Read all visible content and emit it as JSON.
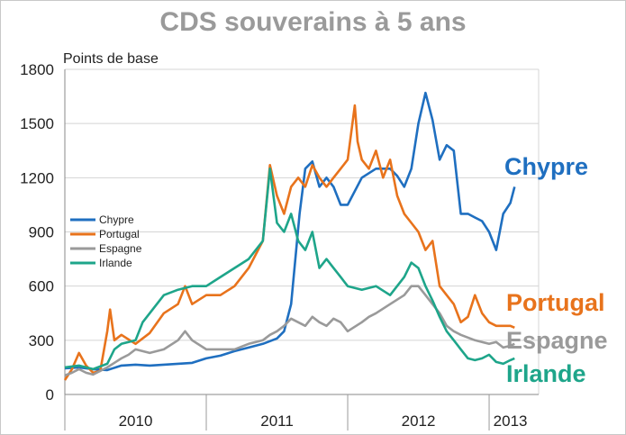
{
  "chart_data": {
    "type": "line",
    "title": "CDS souverains à 5 ans",
    "ylabel": "Points de base",
    "ylim": [
      0,
      1800
    ],
    "yticks": [
      0,
      300,
      600,
      900,
      1200,
      1500,
      1800
    ],
    "xlim": [
      2010.0,
      2013.35
    ],
    "x_tick_labels": [
      {
        "label": "2010",
        "x": 2010.5
      },
      {
        "label": "2011",
        "x": 2011.5
      },
      {
        "label": "2012",
        "x": 2012.5
      },
      {
        "label": "2013",
        "x": 2013.15
      }
    ],
    "x_year_boundaries": [
      2010,
      2011,
      2012,
      2013
    ],
    "grid": true,
    "legend": "left, middle",
    "series": [
      {
        "name": "Chypre",
        "color": "#1f6fc0",
        "end_label": "Chypre",
        "points": [
          [
            2010.0,
            145
          ],
          [
            2010.1,
            150
          ],
          [
            2010.2,
            140
          ],
          [
            2010.3,
            135
          ],
          [
            2010.4,
            160
          ],
          [
            2010.5,
            165
          ],
          [
            2010.6,
            160
          ],
          [
            2010.7,
            165
          ],
          [
            2010.8,
            170
          ],
          [
            2010.9,
            175
          ],
          [
            2011.0,
            200
          ],
          [
            2011.1,
            215
          ],
          [
            2011.2,
            240
          ],
          [
            2011.3,
            260
          ],
          [
            2011.4,
            280
          ],
          [
            2011.5,
            310
          ],
          [
            2011.55,
            350
          ],
          [
            2011.6,
            500
          ],
          [
            2011.63,
            750
          ],
          [
            2011.66,
            1000
          ],
          [
            2011.7,
            1250
          ],
          [
            2011.75,
            1290
          ],
          [
            2011.8,
            1150
          ],
          [
            2011.85,
            1200
          ],
          [
            2011.9,
            1150
          ],
          [
            2011.95,
            1050
          ],
          [
            2012.0,
            1050
          ],
          [
            2012.1,
            1200
          ],
          [
            2012.2,
            1250
          ],
          [
            2012.3,
            1250
          ],
          [
            2012.35,
            1210
          ],
          [
            2012.4,
            1150
          ],
          [
            2012.45,
            1250
          ],
          [
            2012.5,
            1500
          ],
          [
            2012.55,
            1670
          ],
          [
            2012.6,
            1520
          ],
          [
            2012.65,
            1300
          ],
          [
            2012.7,
            1380
          ],
          [
            2012.75,
            1350
          ],
          [
            2012.8,
            1000
          ],
          [
            2012.85,
            1000
          ],
          [
            2012.9,
            980
          ],
          [
            2012.95,
            960
          ],
          [
            2013.0,
            900
          ],
          [
            2013.05,
            800
          ],
          [
            2013.1,
            1000
          ],
          [
            2013.15,
            1060
          ],
          [
            2013.18,
            1150
          ]
        ]
      },
      {
        "name": "Portugal",
        "color": "#e8731c",
        "end_label": "Portugal",
        "points": [
          [
            2010.0,
            80
          ],
          [
            2010.05,
            140
          ],
          [
            2010.1,
            230
          ],
          [
            2010.15,
            160
          ],
          [
            2010.2,
            120
          ],
          [
            2010.25,
            130
          ],
          [
            2010.3,
            350
          ],
          [
            2010.32,
            470
          ],
          [
            2010.35,
            300
          ],
          [
            2010.4,
            330
          ],
          [
            2010.5,
            280
          ],
          [
            2010.6,
            340
          ],
          [
            2010.7,
            450
          ],
          [
            2010.8,
            500
          ],
          [
            2010.85,
            600
          ],
          [
            2010.9,
            500
          ],
          [
            2011.0,
            550
          ],
          [
            2011.1,
            550
          ],
          [
            2011.2,
            600
          ],
          [
            2011.3,
            700
          ],
          [
            2011.4,
            850
          ],
          [
            2011.45,
            1270
          ],
          [
            2011.5,
            1100
          ],
          [
            2011.55,
            1000
          ],
          [
            2011.6,
            1150
          ],
          [
            2011.65,
            1200
          ],
          [
            2011.7,
            1150
          ],
          [
            2011.75,
            1270
          ],
          [
            2011.8,
            1200
          ],
          [
            2011.85,
            1150
          ],
          [
            2011.9,
            1200
          ],
          [
            2011.95,
            1250
          ],
          [
            2012.0,
            1300
          ],
          [
            2012.05,
            1600
          ],
          [
            2012.07,
            1400
          ],
          [
            2012.1,
            1300
          ],
          [
            2012.15,
            1250
          ],
          [
            2012.2,
            1350
          ],
          [
            2012.25,
            1200
          ],
          [
            2012.3,
            1300
          ],
          [
            2012.35,
            1100
          ],
          [
            2012.4,
            1000
          ],
          [
            2012.45,
            950
          ],
          [
            2012.5,
            900
          ],
          [
            2012.55,
            800
          ],
          [
            2012.6,
            850
          ],
          [
            2012.65,
            600
          ],
          [
            2012.7,
            550
          ],
          [
            2012.75,
            500
          ],
          [
            2012.8,
            400
          ],
          [
            2012.85,
            430
          ],
          [
            2012.9,
            550
          ],
          [
            2012.95,
            450
          ],
          [
            2013.0,
            400
          ],
          [
            2013.05,
            380
          ],
          [
            2013.1,
            380
          ],
          [
            2013.15,
            380
          ],
          [
            2013.18,
            370
          ]
        ]
      },
      {
        "name": "Espagne",
        "color": "#9a9a9a",
        "end_label": "Espagne",
        "points": [
          [
            2010.0,
            105
          ],
          [
            2010.05,
            120
          ],
          [
            2010.1,
            140
          ],
          [
            2010.15,
            120
          ],
          [
            2010.2,
            110
          ],
          [
            2010.3,
            150
          ],
          [
            2010.4,
            200
          ],
          [
            2010.45,
            220
          ],
          [
            2010.5,
            250
          ],
          [
            2010.6,
            230
          ],
          [
            2010.7,
            250
          ],
          [
            2010.8,
            300
          ],
          [
            2010.85,
            350
          ],
          [
            2010.9,
            300
          ],
          [
            2011.0,
            250
          ],
          [
            2011.1,
            250
          ],
          [
            2011.2,
            250
          ],
          [
            2011.3,
            280
          ],
          [
            2011.4,
            300
          ],
          [
            2011.45,
            330
          ],
          [
            2011.5,
            350
          ],
          [
            2011.55,
            380
          ],
          [
            2011.6,
            420
          ],
          [
            2011.7,
            380
          ],
          [
            2011.75,
            430
          ],
          [
            2011.8,
            400
          ],
          [
            2011.85,
            380
          ],
          [
            2011.9,
            420
          ],
          [
            2011.95,
            400
          ],
          [
            2012.0,
            350
          ],
          [
            2012.1,
            400
          ],
          [
            2012.15,
            430
          ],
          [
            2012.2,
            450
          ],
          [
            2012.3,
            500
          ],
          [
            2012.4,
            550
          ],
          [
            2012.45,
            600
          ],
          [
            2012.5,
            600
          ],
          [
            2012.55,
            550
          ],
          [
            2012.6,
            500
          ],
          [
            2012.65,
            450
          ],
          [
            2012.7,
            380
          ],
          [
            2012.75,
            350
          ],
          [
            2012.8,
            330
          ],
          [
            2012.9,
            300
          ],
          [
            2013.0,
            280
          ],
          [
            2013.05,
            290
          ],
          [
            2013.1,
            260
          ],
          [
            2013.15,
            270
          ],
          [
            2013.18,
            280
          ]
        ]
      },
      {
        "name": "Irlande",
        "color": "#1ea58a",
        "end_label": "Irlande",
        "points": [
          [
            2010.0,
            150
          ],
          [
            2010.05,
            155
          ],
          [
            2010.1,
            160
          ],
          [
            2010.15,
            150
          ],
          [
            2010.2,
            140
          ],
          [
            2010.3,
            170
          ],
          [
            2010.35,
            250
          ],
          [
            2010.4,
            280
          ],
          [
            2010.5,
            300
          ],
          [
            2010.55,
            400
          ],
          [
            2010.6,
            450
          ],
          [
            2010.7,
            550
          ],
          [
            2010.8,
            580
          ],
          [
            2010.9,
            600
          ],
          [
            2011.0,
            600
          ],
          [
            2011.1,
            650
          ],
          [
            2011.2,
            700
          ],
          [
            2011.3,
            750
          ],
          [
            2011.4,
            850
          ],
          [
            2011.45,
            1250
          ],
          [
            2011.5,
            950
          ],
          [
            2011.55,
            900
          ],
          [
            2011.6,
            1000
          ],
          [
            2011.65,
            850
          ],
          [
            2011.7,
            800
          ],
          [
            2011.75,
            900
          ],
          [
            2011.8,
            700
          ],
          [
            2011.85,
            750
          ],
          [
            2011.9,
            700
          ],
          [
            2011.95,
            650
          ],
          [
            2012.0,
            600
          ],
          [
            2012.1,
            580
          ],
          [
            2012.2,
            600
          ],
          [
            2012.3,
            550
          ],
          [
            2012.4,
            650
          ],
          [
            2012.45,
            730
          ],
          [
            2012.5,
            700
          ],
          [
            2012.55,
            600
          ],
          [
            2012.6,
            520
          ],
          [
            2012.65,
            430
          ],
          [
            2012.7,
            350
          ],
          [
            2012.75,
            300
          ],
          [
            2012.8,
            250
          ],
          [
            2012.85,
            200
          ],
          [
            2012.9,
            190
          ],
          [
            2012.95,
            200
          ],
          [
            2013.0,
            220
          ],
          [
            2013.05,
            180
          ],
          [
            2013.1,
            170
          ],
          [
            2013.15,
            190
          ],
          [
            2013.18,
            200
          ]
        ]
      }
    ]
  }
}
